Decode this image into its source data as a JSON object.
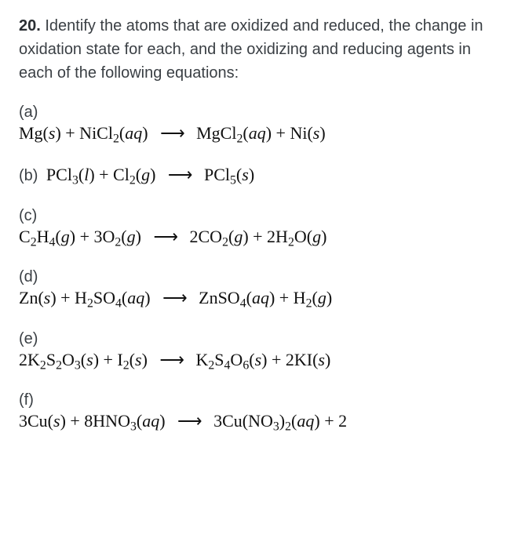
{
  "question": {
    "number": "20",
    "prompt": "Identify the atoms that are oxidized and reduced, the change in oxidation state for each, and the oxidizing and reducing agents in each of the following equations:"
  },
  "parts": {
    "a": {
      "label": "(a)",
      "lhs": "Mg(<i>s</i>) + NiCl<sub>2</sub>(<i>aq</i>)",
      "rhs": "MgCl<sub>2</sub>(<i>aq</i>) + Ni(<i>s</i>)",
      "inline": false
    },
    "b": {
      "label": "(b)",
      "lhs": "PCl<sub>3</sub>(<i>l</i>) + Cl<sub>2</sub>(<i>g</i>)",
      "rhs": "PCl<sub>5</sub>(<i>s</i>)",
      "inline": true
    },
    "c": {
      "label": "(c)",
      "lhs": "C<sub>2</sub>H<sub>4</sub>(<i>g</i>) + 3O<sub>2</sub>(<i>g</i>)",
      "rhs": "2CO<sub>2</sub>(<i>g</i>) + 2H<sub>2</sub>O(<i>g</i>)",
      "inline": false
    },
    "d": {
      "label": "(d)",
      "lhs": "Zn(<i>s</i>) + H<sub>2</sub>SO<sub>4</sub>(<i>aq</i>)",
      "rhs": "ZnSO<sub>4</sub>(<i>aq</i>) + H<sub>2</sub>(<i>g</i>)",
      "inline": false
    },
    "e": {
      "label": "(e)",
      "lhs": "2K<sub>2</sub>S<sub>2</sub>O<sub>3</sub>(<i>s</i>) + I<sub>2</sub>(<i>s</i>)",
      "rhs": "K<sub>2</sub>S<sub>4</sub>O<sub>6</sub>(<i>s</i>) + 2KI(<i>s</i>)",
      "inline": false
    },
    "f": {
      "label": "(f)",
      "lhs": "3Cu(<i>s</i>) + 8HNO<sub>3</sub>(<i>aq</i>)",
      "rhs": "3Cu(NO<sub>3</sub>)<sub>2</sub>(<i>aq</i>) + 2",
      "inline": false
    }
  },
  "arrow_glyph": "⟶"
}
